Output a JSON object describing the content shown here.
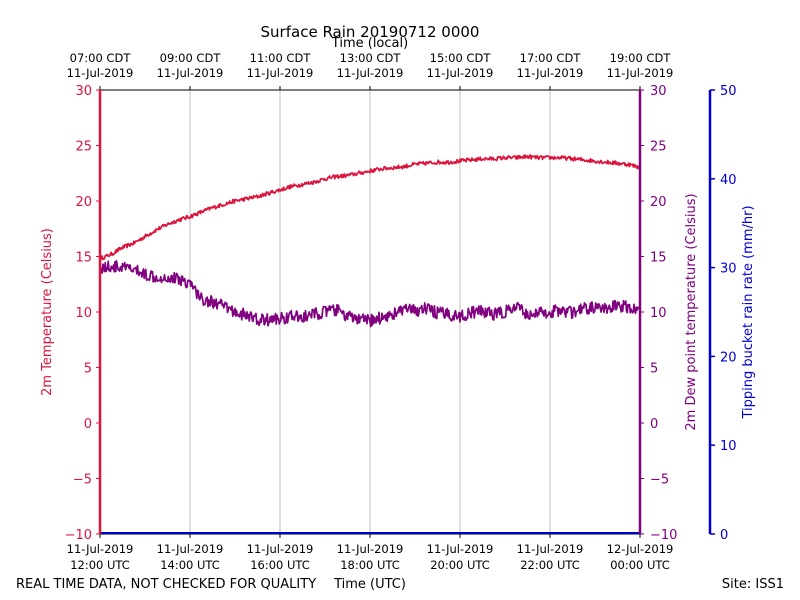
{
  "chart_data": {
    "type": "line",
    "title": "Surface Rain 20190712 0000",
    "xlabel_bottom": "Time (UTC)",
    "xlabel_top": "Time (local)",
    "ylabel_left": "2m Temperature (Celsius)",
    "ylabel_right_inner": "2m Dew point temperature (Celsius)",
    "ylabel_right_outer": "Tipping bucket rain rate (mm/hr)",
    "ylim_left": [
      -10,
      30
    ],
    "ylim_right_inner": [
      -10,
      30
    ],
    "ylim_right_outer": [
      0,
      50
    ],
    "xlim_hours_utc": [
      12,
      24
    ],
    "yticks_left": [
      "30",
      "25",
      "20",
      "15",
      "10",
      "5",
      "0",
      "−5",
      "−10"
    ],
    "yticks_right_outer": [
      "50",
      "40",
      "30",
      "20",
      "10",
      "0"
    ],
    "xticks_bottom": [
      {
        "l1": "11-Jul-2019",
        "l2": "12:00 UTC"
      },
      {
        "l1": "11-Jul-2019",
        "l2": "14:00 UTC"
      },
      {
        "l1": "11-Jul-2019",
        "l2": "16:00 UTC"
      },
      {
        "l1": "11-Jul-2019",
        "l2": "18:00 UTC"
      },
      {
        "l1": "11-Jul-2019",
        "l2": "20:00 UTC"
      },
      {
        "l1": "11-Jul-2019",
        "l2": "22:00 UTC"
      },
      {
        "l1": "12-Jul-2019",
        "l2": "00:00 UTC"
      }
    ],
    "xticks_top": [
      {
        "l1": "07:00 CDT",
        "l2": "11-Jul-2019"
      },
      {
        "l1": "09:00 CDT",
        "l2": "11-Jul-2019"
      },
      {
        "l1": "11:00 CDT",
        "l2": "11-Jul-2019"
      },
      {
        "l1": "13:00 CDT",
        "l2": "11-Jul-2019"
      },
      {
        "l1": "15:00 CDT",
        "l2": "11-Jul-2019"
      },
      {
        "l1": "17:00 CDT",
        "l2": "11-Jul-2019"
      },
      {
        "l1": "19:00 CDT",
        "l2": "11-Jul-2019"
      }
    ],
    "grid": "vertical",
    "series": [
      {
        "name": "2m Temperature",
        "axis": "left",
        "color": "#dc143c",
        "x": [
          12.0,
          12.25,
          12.5,
          12.75,
          13.0,
          13.25,
          13.5,
          13.75,
          14.0,
          14.25,
          14.5,
          14.75,
          15.0,
          15.25,
          15.5,
          15.75,
          16.0,
          16.25,
          16.5,
          16.75,
          17.0,
          17.25,
          17.5,
          17.75,
          18.0,
          18.25,
          18.5,
          18.75,
          19.0,
          19.25,
          19.5,
          19.75,
          20.0,
          20.25,
          20.5,
          20.75,
          21.0,
          21.25,
          21.5,
          21.75,
          22.0,
          22.25,
          22.5,
          22.75,
          23.0,
          23.25,
          23.5,
          23.75,
          24.0
        ],
        "values": [
          14.8,
          15.2,
          15.8,
          16.2,
          16.8,
          17.4,
          17.9,
          18.3,
          18.6,
          19.0,
          19.4,
          19.7,
          20.0,
          20.2,
          20.4,
          20.7,
          21.0,
          21.3,
          21.5,
          21.7,
          22.0,
          22.2,
          22.3,
          22.5,
          22.7,
          22.9,
          23.0,
          23.1,
          23.3,
          23.4,
          23.5,
          23.5,
          23.6,
          23.7,
          23.8,
          23.8,
          23.9,
          23.9,
          24.0,
          23.9,
          23.9,
          23.9,
          23.8,
          23.7,
          23.6,
          23.5,
          23.4,
          23.3,
          23.0
        ]
      },
      {
        "name": "2m Dew point temperature",
        "axis": "right_inner",
        "color": "#800080",
        "x": [
          12.0,
          12.25,
          12.5,
          12.75,
          13.0,
          13.25,
          13.5,
          13.75,
          14.0,
          14.25,
          14.5,
          14.75,
          15.0,
          15.25,
          15.5,
          15.75,
          16.0,
          16.25,
          16.5,
          16.75,
          17.0,
          17.25,
          17.5,
          17.75,
          18.0,
          18.25,
          18.5,
          18.75,
          19.0,
          19.25,
          19.5,
          19.75,
          20.0,
          20.25,
          20.5,
          20.75,
          21.0,
          21.25,
          21.5,
          21.75,
          22.0,
          22.25,
          22.5,
          22.75,
          23.0,
          23.25,
          23.5,
          23.75,
          24.0
        ],
        "values": [
          14.0,
          14.1,
          14.0,
          13.8,
          13.4,
          13.2,
          13.1,
          13.0,
          12.6,
          11.2,
          10.9,
          10.5,
          10.0,
          9.7,
          9.3,
          9.3,
          9.4,
          9.6,
          9.5,
          9.8,
          10.0,
          10.2,
          9.6,
          9.3,
          9.2,
          9.5,
          9.8,
          10.2,
          10.1,
          10.3,
          9.9,
          9.8,
          9.6,
          9.9,
          10.1,
          9.8,
          10.0,
          10.4,
          9.8,
          9.9,
          10.0,
          10.2,
          9.9,
          10.3,
          10.4,
          10.2,
          10.6,
          10.4,
          10.1
        ]
      },
      {
        "name": "Tipping bucket rain rate",
        "axis": "right_outer",
        "color": "#0000cd",
        "x": [
          12.0,
          24.0
        ],
        "values": [
          0,
          0
        ]
      }
    ]
  },
  "footer": {
    "note": "REAL TIME DATA, NOT CHECKED FOR QUALITY",
    "site": "Site: ISS1"
  },
  "colors": {
    "temperature": "#dc143c",
    "dewpoint": "#800080",
    "rain": "#0000cd",
    "grid": "#b0b0b0"
  }
}
